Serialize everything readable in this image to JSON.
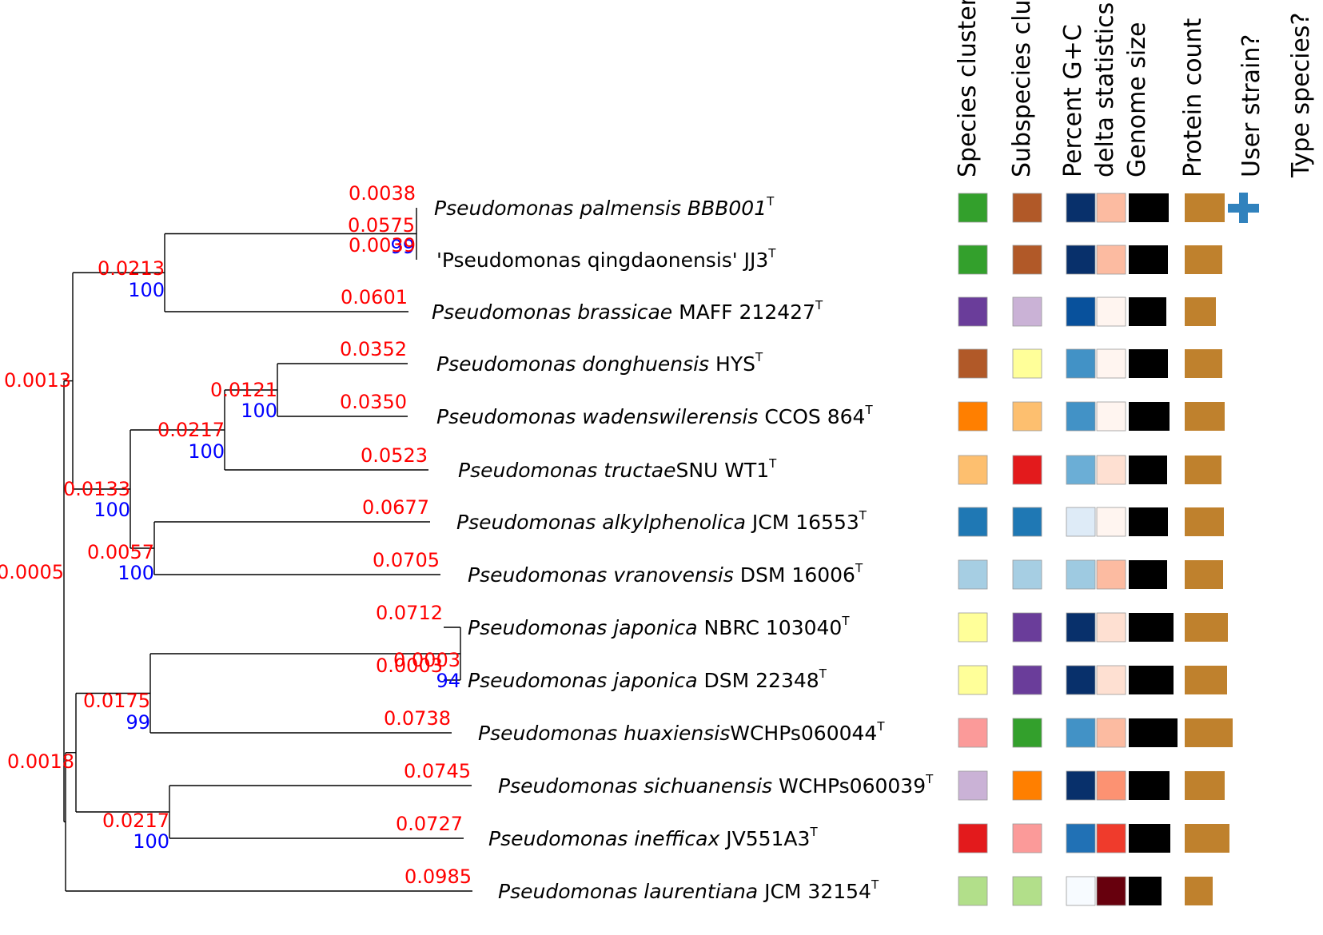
{
  "columns": [
    {
      "name": "species",
      "label": "Species cluster"
    },
    {
      "name": "subspecies",
      "label": "Subspecies cluster"
    },
    {
      "name": "gc",
      "label": "Percent G+C"
    },
    {
      "name": "delta",
      "label": "delta statistics"
    },
    {
      "name": "genome",
      "label": "Genome size"
    },
    {
      "name": "protein",
      "label": "Protein count"
    },
    {
      "name": "user",
      "label": "User strain?"
    },
    {
      "name": "type",
      "label": "Type species?"
    }
  ],
  "taxa": [
    {
      "italic": "Pseudomonas palmensis BBB001",
      "plain": "",
      "sup": "T",
      "branch_length": "0.0038",
      "species": "#33a02c",
      "subspecies": "#b15928",
      "gc": "#08306b",
      "delta": "#fcbba1",
      "genome_size": 1.0,
      "protein_count": 1.0,
      "user_strain": true
    },
    {
      "italic": "",
      "plain": "'Pseudomonas qingdaonensis' JJ3",
      "sup": "T",
      "branch_length": "0.0039",
      "species": "#33a02c",
      "subspecies": "#b15928",
      "gc": "#08306b",
      "delta": "#fcbba1",
      "genome_size": 0.98,
      "protein_count": 0.94,
      "user_strain": false
    },
    {
      "italic": "Pseudomonas brassicae",
      "plain": " MAFF 212427",
      "sup": "T",
      "branch_length": "0.0601",
      "species": "#6a3d9a",
      "subspecies": "#cab2d6",
      "gc": "#08519c",
      "delta": "#fff5f0",
      "genome_size": 0.94,
      "protein_count": 0.78,
      "user_strain": false
    },
    {
      "italic": "Pseudomonas donghuensis",
      "plain": " HYS",
      "sup": "T",
      "branch_length": "0.0352",
      "species": "#b15928",
      "subspecies": "#ffff99",
      "gc": "#4292c6",
      "delta": "#fff5f0",
      "genome_size": 0.98,
      "protein_count": 0.94,
      "user_strain": false
    },
    {
      "italic": "Pseudomonas wadenswilerensis",
      "plain": " CCOS 864",
      "sup": "T",
      "branch_length": "0.0350",
      "species": "#ff7f00",
      "subspecies": "#fdbf6f",
      "gc": "#4292c6",
      "delta": "#fff5f0",
      "genome_size": 1.02,
      "protein_count": 1.0,
      "user_strain": false
    },
    {
      "italic": "Pseudomonas tructae",
      "plain": "SNU WT1",
      "sup": "T",
      "branch_length": "0.0523",
      "species": "#fdbf6f",
      "subspecies": "#e31a1c",
      "gc": "#6baed6",
      "delta": "#fee0d2",
      "genome_size": 0.96,
      "protein_count": 0.92,
      "user_strain": false
    },
    {
      "italic": "Pseudomonas alkylphenolica",
      "plain": " JCM 16553",
      "sup": "T",
      "branch_length": "0.0677",
      "species": "#1f78b4",
      "subspecies": "#1f78b4",
      "gc": "#deebf7",
      "delta": "#fff5f0",
      "genome_size": 0.98,
      "protein_count": 0.98,
      "user_strain": false
    },
    {
      "italic": "Pseudomonas vranovensis",
      "plain": " DSM 16006",
      "sup": "T",
      "branch_length": "0.0705",
      "species": "#a6cee3",
      "subspecies": "#a6cee3",
      "gc": "#9ecae1",
      "delta": "#fcbba1",
      "genome_size": 0.96,
      "protein_count": 0.96,
      "user_strain": false
    },
    {
      "italic": "Pseudomonas japonica",
      "plain": " NBRC 103040",
      "sup": "T",
      "branch_length": "0.0712",
      "species": "#ffff99",
      "subspecies": "#6a3d9a",
      "gc": "#08306b",
      "delta": "#fee0d2",
      "genome_size": 1.12,
      "protein_count": 1.08,
      "user_strain": false
    },
    {
      "italic": "Pseudomonas japonica",
      "plain": " DSM 22348",
      "sup": "T",
      "branch_length": "0.0003",
      "species": "#ffff99",
      "subspecies": "#6a3d9a",
      "gc": "#08306b",
      "delta": "#fee0d2",
      "genome_size": 1.12,
      "protein_count": 1.06,
      "user_strain": false
    },
    {
      "italic": "Pseudomonas huaxiensis",
      "plain": "WCHPs060044",
      "sup": "T",
      "branch_length": "0.0738",
      "species": "#fb9a99",
      "subspecies": "#33a02c",
      "gc": "#4292c6",
      "delta": "#fcbba1",
      "genome_size": 1.22,
      "protein_count": 1.2,
      "user_strain": false
    },
    {
      "italic": "Pseudomonas sichuanensis",
      "plain": " WCHPs060039",
      "sup": "T",
      "branch_length": "0.0745",
      "species": "#cab2d6",
      "subspecies": "#ff7f00",
      "gc": "#08306b",
      "delta": "#fc9272",
      "genome_size": 1.02,
      "protein_count": 1.0,
      "user_strain": false
    },
    {
      "italic": "Pseudomonas inefficax",
      "plain": " JV551A3",
      "sup": "T",
      "branch_length": "0.0727",
      "species": "#e31a1c",
      "subspecies": "#fb9a99",
      "gc": "#2171b5",
      "delta": "#ef3b2c",
      "genome_size": 1.04,
      "protein_count": 1.12,
      "user_strain": false
    },
    {
      "italic": "Pseudomonas laurentiana",
      "plain": " JCM 32154",
      "sup": "T",
      "branch_length": "0.0985",
      "species": "#b2df8a",
      "subspecies": "#b2df8a",
      "gc": "#f7fbff",
      "delta": "#67000d",
      "genome_size": 0.82,
      "protein_count": 0.7,
      "user_strain": false
    }
  ],
  "internal_labels": {
    "n_palm_qing": {
      "length": "0.0575",
      "support": "99"
    },
    "n_A": {
      "length": "0.0213",
      "support": "100"
    },
    "n_don_wad": {
      "length": "0.0121",
      "support": "100"
    },
    "n_don_wad_tru": {
      "length": "0.0217",
      "support": "100"
    },
    "n_alk_vra": {
      "length": "0.0057",
      "support": "100"
    },
    "n_B": {
      "length": "0.0133",
      "support": "100"
    },
    "n_AB": {
      "length": "0.0013",
      "support": ""
    },
    "n_jap": {
      "length": "0.0003",
      "support": "94"
    },
    "n_jap_hua": {
      "length": "0.0175",
      "support": "99"
    },
    "n_sic_ine": {
      "length": "0.0217",
      "support": "100"
    },
    "n_D": {
      "length": "0.0018",
      "support": ""
    },
    "n_root": {
      "length": "0.0005",
      "support": ""
    }
  }
}
